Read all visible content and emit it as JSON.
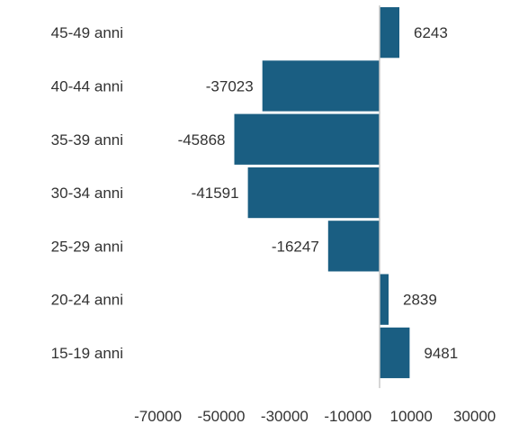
{
  "chart_data": {
    "type": "bar",
    "orientation": "horizontal",
    "title": "",
    "xlabel": "",
    "ylabel": "",
    "categories": [
      "45-49 anni",
      "40-44 anni",
      "35-39 anni",
      "30-34 anni",
      "25-29 anni",
      "20-24 anni",
      "15-19 anni"
    ],
    "values": [
      6243,
      -37023,
      -45868,
      -41591,
      -16247,
      2839,
      9481
    ],
    "data_labels": [
      "6243",
      "-37023",
      "-45868",
      "-41591",
      "-16247",
      "2839",
      "9481"
    ],
    "xlim": [
      -70000,
      30000
    ],
    "xticks": [
      -70000,
      -50000,
      -30000,
      -10000,
      10000,
      30000
    ],
    "xtick_labels": [
      "-70000",
      "-50000",
      "-30000",
      "-10000",
      "10000",
      "30000"
    ],
    "grid": false,
    "legend": "none",
    "bar_color": "#1a5e82",
    "zero_line_color": "#c8c8c8"
  }
}
